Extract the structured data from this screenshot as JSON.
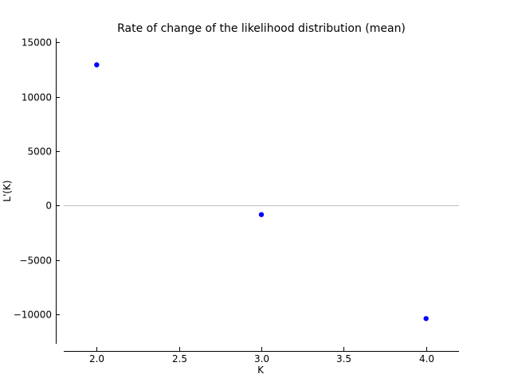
{
  "chart_data": {
    "type": "scatter",
    "title": "Rate of change of the likelihood distribution (mean)",
    "xlabel": "K",
    "ylabel": "L'(K)",
    "x": [
      2.0,
      3.0,
      4.0
    ],
    "y": [
      12950,
      -820,
      -10380
    ],
    "xlim": [
      1.8,
      4.2
    ],
    "ylim": [
      -12700,
      15400
    ],
    "xticks": [
      2.0,
      2.5,
      3.0,
      3.5,
      4.0
    ],
    "xtick_labels": [
      "2.0",
      "2.5",
      "3.0",
      "3.5",
      "4.0"
    ],
    "yticks": [
      15000,
      10000,
      5000,
      0,
      -5000,
      -10000
    ],
    "ytick_labels": [
      "15000",
      "10000",
      "5000",
      "0",
      "−5000",
      "−10000"
    ],
    "zero_line": true,
    "grid": false,
    "marker_color": "#0000ff",
    "zero_line_color": "#bfbfbf"
  }
}
